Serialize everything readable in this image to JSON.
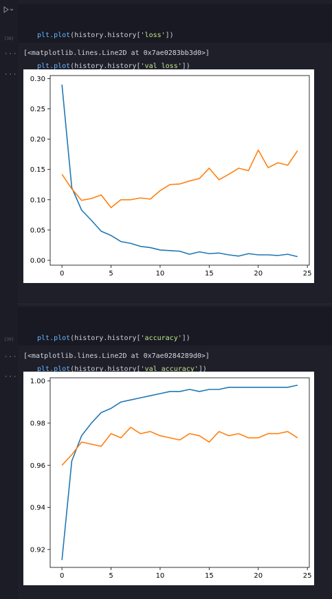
{
  "cell1": {
    "exec_count": "[38]",
    "code": [
      {
        "fn": "plt.plot",
        "open": "(history.history[",
        "str": "'loss'",
        "close": "])"
      },
      {
        "fn": "plt.plot",
        "open": "(history.history[",
        "str": "'val_loss'",
        "close": "])"
      }
    ],
    "output_text": "[<matplotlib.lines.Line2D at 0x7ae0283bb3d0>]"
  },
  "cell2": {
    "exec_count": "[39]",
    "code": [
      {
        "fn": "plt.plot",
        "open": "(history.history[",
        "str": "'accuracy'",
        "close": "])"
      },
      {
        "fn": "plt.plot",
        "open": "(history.history[",
        "str": "'val_accuracy'",
        "close": "])"
      }
    ],
    "output_text": "[<matplotlib.lines.Line2D at 0x7ae0284289d0>]"
  },
  "icons": {
    "run": "play-icon",
    "more": "more-dots-icon"
  },
  "colors": {
    "series1": "#1f77b4",
    "series2": "#ff7f0e",
    "background": "#1e1f29"
  },
  "chart_data": [
    {
      "type": "line",
      "x": [
        0,
        1,
        2,
        3,
        4,
        5,
        6,
        7,
        8,
        9,
        10,
        11,
        12,
        13,
        14,
        15,
        16,
        17,
        18,
        19,
        20,
        21,
        22,
        23,
        24
      ],
      "xlim": [
        -1.2,
        25.2
      ],
      "ylim": [
        -0.008,
        0.305
      ],
      "xticks": [
        0,
        5,
        10,
        15,
        20,
        25
      ],
      "yticks": [
        0.0,
        0.05,
        0.1,
        0.15,
        0.2,
        0.25,
        0.3
      ],
      "ytick_labels": [
        "0.00",
        "0.05",
        "0.10",
        "0.15",
        "0.20",
        "0.25",
        "0.30"
      ],
      "grid": false,
      "series": [
        {
          "color": "#1f77b4",
          "values": [
            0.29,
            0.12,
            0.083,
            0.066,
            0.048,
            0.041,
            0.031,
            0.028,
            0.023,
            0.021,
            0.017,
            0.016,
            0.015,
            0.01,
            0.014,
            0.011,
            0.012,
            0.009,
            0.007,
            0.011,
            0.009,
            0.009,
            0.008,
            0.01,
            0.006
          ]
        },
        {
          "color": "#ff7f0e",
          "values": [
            0.142,
            0.118,
            0.099,
            0.102,
            0.108,
            0.087,
            0.1,
            0.1,
            0.103,
            0.101,
            0.115,
            0.125,
            0.126,
            0.131,
            0.135,
            0.152,
            0.133,
            0.142,
            0.152,
            0.148,
            0.182,
            0.153,
            0.161,
            0.157,
            0.181
          ]
        }
      ]
    },
    {
      "type": "line",
      "x": [
        0,
        1,
        2,
        3,
        4,
        5,
        6,
        7,
        8,
        9,
        10,
        11,
        12,
        13,
        14,
        15,
        16,
        17,
        18,
        19,
        20,
        21,
        22,
        23,
        24
      ],
      "xlim": [
        -1.2,
        25.2
      ],
      "ylim": [
        0.9115,
        1.0015
      ],
      "xticks": [
        0,
        5,
        10,
        15,
        20,
        25
      ],
      "yticks": [
        0.92,
        0.94,
        0.96,
        0.98,
        1.0
      ],
      "ytick_labels": [
        "0.92",
        "0.94",
        "0.96",
        "0.98",
        "1.00"
      ],
      "grid": false,
      "series": [
        {
          "color": "#1f77b4",
          "values": [
            0.915,
            0.962,
            0.974,
            0.98,
            0.985,
            0.987,
            0.99,
            0.991,
            0.992,
            0.993,
            0.994,
            0.995,
            0.995,
            0.996,
            0.995,
            0.996,
            0.996,
            0.997,
            0.997,
            0.997,
            0.997,
            0.997,
            0.997,
            0.997,
            0.998
          ]
        },
        {
          "color": "#ff7f0e",
          "values": [
            0.96,
            0.965,
            0.971,
            0.97,
            0.969,
            0.975,
            0.973,
            0.978,
            0.975,
            0.976,
            0.974,
            0.973,
            0.972,
            0.975,
            0.974,
            0.971,
            0.976,
            0.974,
            0.975,
            0.973,
            0.973,
            0.975,
            0.975,
            0.976,
            0.973
          ]
        }
      ]
    }
  ]
}
